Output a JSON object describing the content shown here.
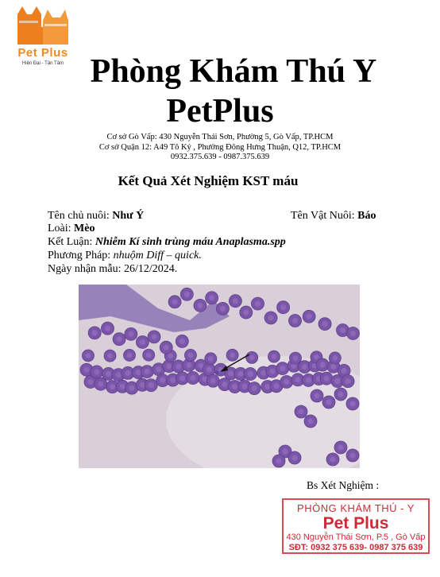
{
  "logo": {
    "brand": "Pet Plus",
    "slogan": "Hiện Đại - Tận Tâm",
    "accent": "#f08a24"
  },
  "header": {
    "title_line1": "Phòng Khám Thú Y",
    "title_line2": "PetPlus",
    "address1": "Cơ sở Gò Vấp: 430 Nguyễn Thái Sơn, Phường 5, Gò Vấp, TP.HCM",
    "address2": "Cơ sở Quận 12: A49 Tô Ký , Phường Đông Hưng Thuận, Q12, TP.HCM",
    "phones": "0932.375.639 - 0987.375.639"
  },
  "report": {
    "title": "Kết Quả Xét Nghiệm KST máu",
    "owner_label": "Tên chủ nuôi: ",
    "owner_value": "Như Ý",
    "pet_label": "Tên Vật Nuôi: ",
    "pet_value": "Báo",
    "species_label": "Loài: ",
    "species_value": "Mèo",
    "conclusion_label": "Kết Luận: ",
    "conclusion_value": "Nhiễm Kí sinh trùng máu Anaplasma.spp",
    "method_label": "Phương Pháp: ",
    "method_value": "nhuộm Diff – quick.",
    "date_label": "Ngày nhận mẫu: ",
    "date_value": "26/12/2024."
  },
  "signature": {
    "doctor_label": "Bs Xét Nghiệm :"
  },
  "stamp": {
    "line1": "PHÒNG KHÁM THÚ - Y",
    "line2": "Pet Plus",
    "line3": "430 Nguyễn Thái Sơn, P.5 , Gò Vấp",
    "line4": "SĐT: 0932 375 639- 0987 375 639",
    "color": "#d02a36"
  }
}
